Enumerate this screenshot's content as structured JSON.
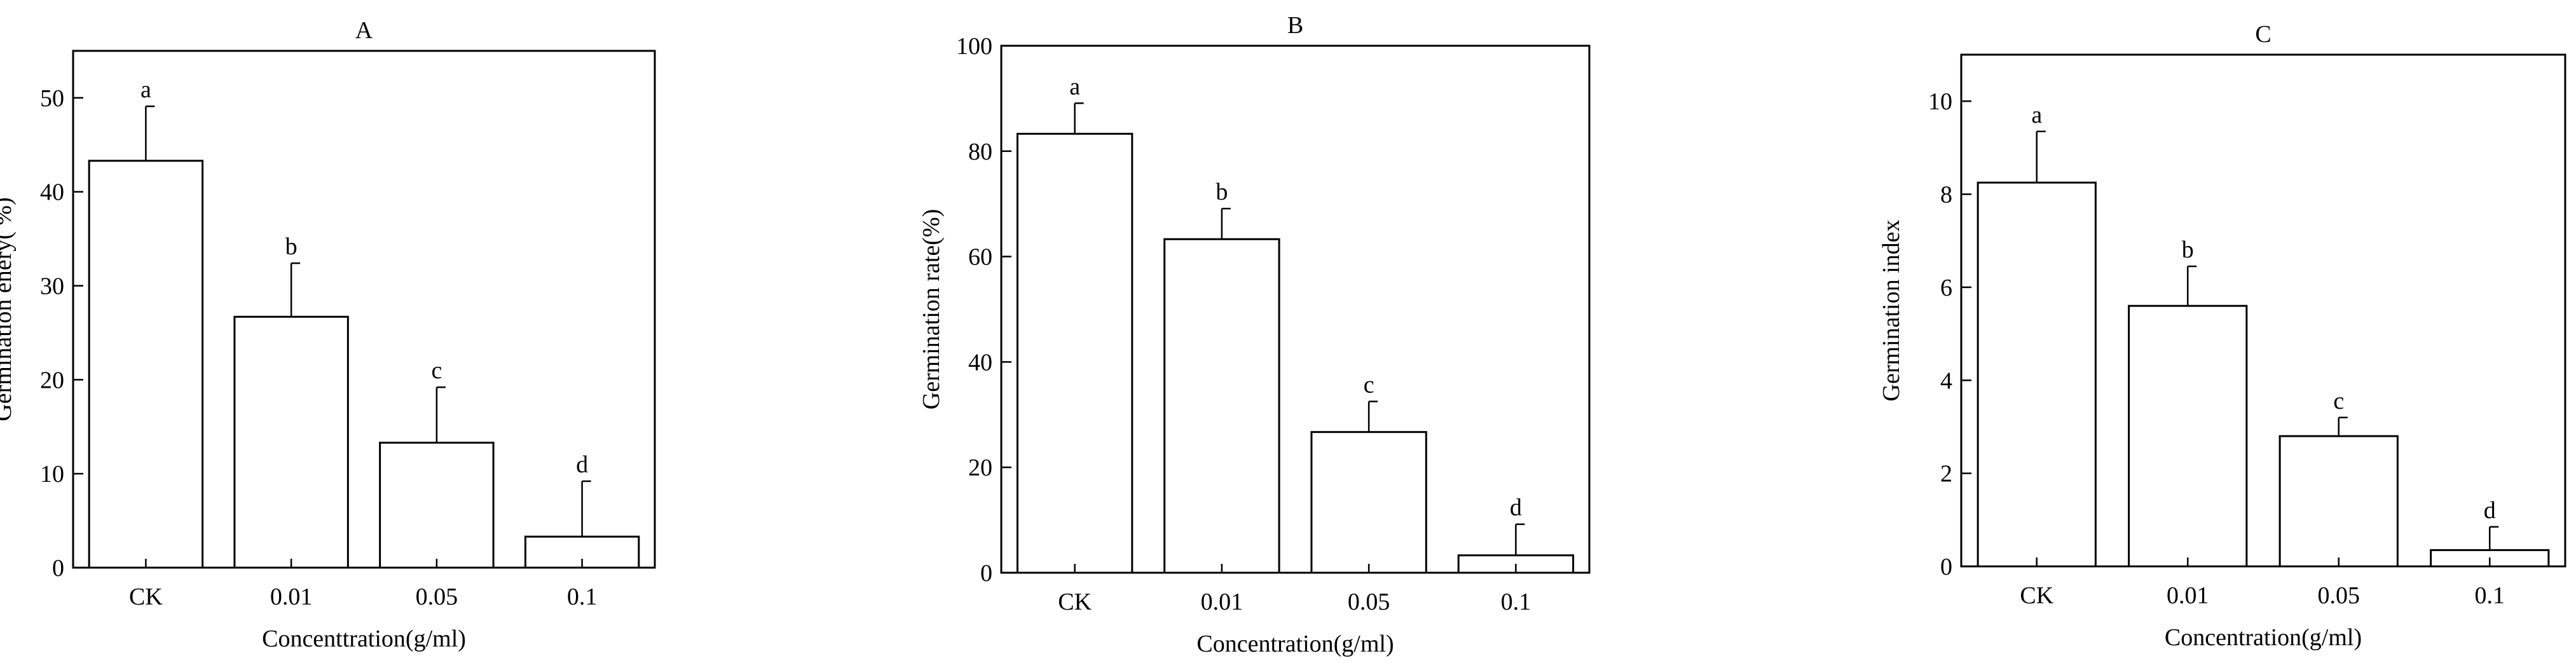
{
  "chart_data": [
    {
      "type": "bar",
      "title": "A",
      "xlabel": "Concenttration(g/ml)",
      "ylabel": "Germination enery(   %)",
      "categories": [
        "CK",
        "0.01",
        "0.05",
        "0.1"
      ],
      "values": [
        43.3,
        26.7,
        13.3,
        3.3
      ],
      "errors": [
        5.8,
        5.7,
        5.9,
        5.9
      ],
      "labels": [
        "a",
        "b",
        "c",
        "d"
      ],
      "ylim": [
        0,
        55
      ],
      "yticks": [
        0,
        10,
        20,
        30,
        40,
        50
      ],
      "grid": false
    },
    {
      "type": "bar",
      "title": "B",
      "xlabel": "Concentration(g/ml)",
      "ylabel": "Germination rate(%)",
      "categories": [
        "CK",
        "0.01",
        "0.05",
        "0.1"
      ],
      "values": [
        83.3,
        63.3,
        26.7,
        3.3
      ],
      "errors": [
        5.8,
        5.8,
        5.8,
        5.9
      ],
      "labels": [
        "a",
        "b",
        "c",
        "d"
      ],
      "ylim": [
        0,
        100
      ],
      "yticks": [
        0,
        20,
        40,
        60,
        80,
        100
      ],
      "grid": false
    },
    {
      "type": "bar",
      "title": "C",
      "xlabel": "Concentration(g/ml)",
      "ylabel": "Germination index",
      "categories": [
        "CK",
        "0.01",
        "0.05",
        "0.1"
      ],
      "values": [
        8.25,
        5.6,
        2.8,
        0.35
      ],
      "errors": [
        1.1,
        0.85,
        0.4,
        0.5
      ],
      "labels": [
        "a",
        "b",
        "c",
        "d"
      ],
      "ylim": [
        0,
        11
      ],
      "yticks": [
        0,
        2,
        4,
        6,
        8,
        10
      ],
      "grid": false
    }
  ]
}
